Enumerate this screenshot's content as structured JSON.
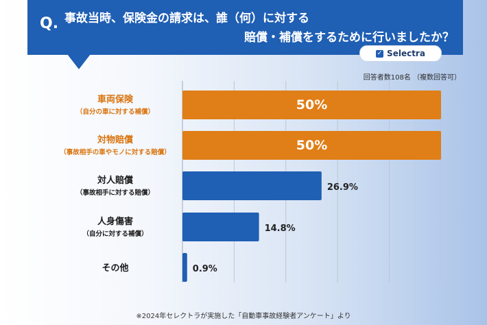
{
  "header": {
    "q_mark": "Q.",
    "question_line1": "事故当時、保険金の請求は、誰（何）に対する",
    "question_line2": "賠償・補償をするために行いましたか？"
  },
  "logo": {
    "text": "Selectra",
    "icon": "check-square-icon"
  },
  "note": "回答者数108名 （複数回答可）",
  "footer": "※2024年セレクトラが実施した「自動車事故経験者アンケート」より",
  "colors": {
    "header": "#1f5fb4",
    "highlight_bar": "#e07e17",
    "bar": "#1f5fb4"
  },
  "chart_data": {
    "type": "bar",
    "orientation": "horizontal",
    "title": "",
    "xlabel": "",
    "ylabel": "",
    "xlim": [
      0,
      50
    ],
    "grid": true,
    "categories": [
      {
        "label": "車両保険",
        "sublabel": "（自分の車に対する補償）"
      },
      {
        "label": "対物賠償",
        "sublabel": "（事故相手の車やモノに対する賠償）"
      },
      {
        "label": "対人賠償",
        "sublabel": "（事故相手に対する賠償）"
      },
      {
        "label": "人身傷害",
        "sublabel": "（自分に対する補償）"
      },
      {
        "label": "その他",
        "sublabel": ""
      }
    ],
    "values": [
      50,
      50,
      26.9,
      14.8,
      0.9
    ],
    "value_labels": [
      "50%",
      "50%",
      "26.9%",
      "14.8%",
      "0.9%"
    ],
    "highlight": [
      true,
      true,
      false,
      false,
      false
    ]
  }
}
